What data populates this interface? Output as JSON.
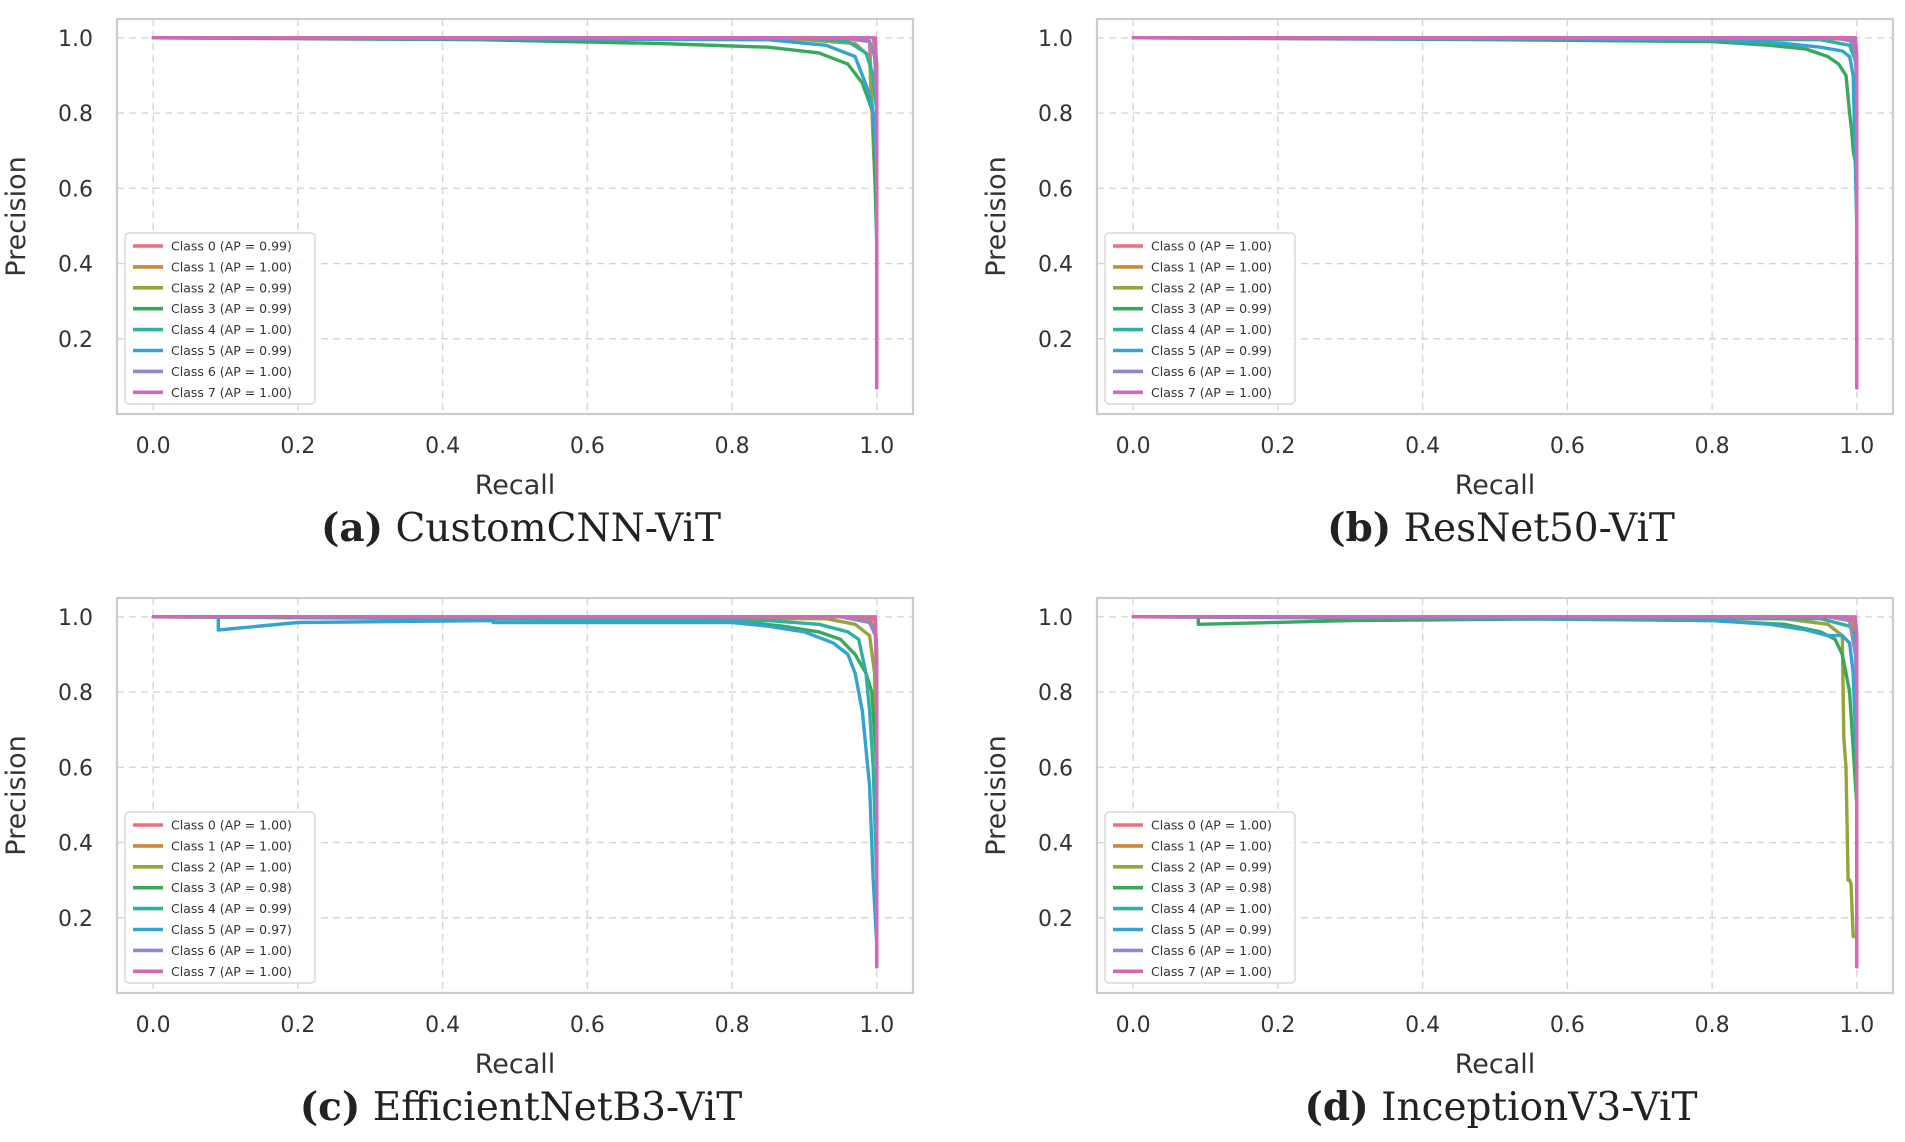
{
  "colors": [
    "#e8707f",
    "#c88a3a",
    "#9aa33a",
    "#3aa85a",
    "#2fb0a0",
    "#35a3d0",
    "#9088c8",
    "#d468b8"
  ],
  "chart_data": [
    {
      "type": "line",
      "label": "(a)",
      "caption": "CustomCNN-ViT",
      "xlabel": "Recall",
      "ylabel": "Precision",
      "xlim": [
        -0.05,
        1.05
      ],
      "ylim": [
        0.0,
        1.05
      ],
      "xticks": [
        "0.0",
        "0.2",
        "0.4",
        "0.6",
        "0.8",
        "1.0"
      ],
      "yticks": [
        "0.2",
        "0.4",
        "0.6",
        "0.8",
        "1.0"
      ],
      "grid": true,
      "legend_position": "lower-left",
      "series": [
        {
          "name": "Class 0 (AP = 0.99)",
          "x": [
            0.0,
            0.95,
            0.99,
            0.995,
            1.0,
            1.0
          ],
          "y": [
            1.0,
            1.0,
            0.99,
            0.75,
            0.73,
            0.07
          ]
        },
        {
          "name": "Class 1 (AP = 1.00)",
          "x": [
            0.0,
            0.97,
            0.995,
            1.0,
            1.0
          ],
          "y": [
            1.0,
            1.0,
            1.0,
            0.93,
            0.07
          ]
        },
        {
          "name": "Class 2 (AP = 0.99)",
          "x": [
            0.0,
            0.9,
            0.97,
            0.99,
            1.0,
            1.0
          ],
          "y": [
            1.0,
            0.995,
            0.985,
            0.95,
            0.5,
            0.07
          ]
        },
        {
          "name": "Class 3 (AP = 0.99)",
          "x": [
            0.0,
            0.45,
            0.7,
            0.85,
            0.92,
            0.96,
            0.98,
            0.995,
            1.0,
            1.0
          ],
          "y": [
            1.0,
            0.995,
            0.985,
            0.975,
            0.96,
            0.93,
            0.88,
            0.8,
            0.45,
            0.07
          ]
        },
        {
          "name": "Class 4 (AP = 1.00)",
          "x": [
            0.0,
            0.9,
            0.96,
            0.985,
            0.995,
            1.0,
            1.0
          ],
          "y": [
            1.0,
            1.0,
            0.99,
            0.96,
            0.9,
            0.8,
            0.07
          ]
        },
        {
          "name": "Class 5 (AP = 0.99)",
          "x": [
            0.0,
            0.85,
            0.93,
            0.97,
            0.99,
            0.995,
            1.0,
            1.0
          ],
          "y": [
            1.0,
            0.995,
            0.98,
            0.95,
            0.85,
            0.8,
            0.65,
            0.07
          ]
        },
        {
          "name": "Class 6 (AP = 1.00)",
          "x": [
            0.0,
            0.96,
            0.99,
            0.997,
            1.0,
            1.0
          ],
          "y": [
            1.0,
            1.0,
            0.99,
            0.95,
            0.85,
            0.07
          ]
        },
        {
          "name": "Class 7 (AP = 1.00)",
          "x": [
            0.0,
            0.98,
            0.998,
            1.0,
            1.0
          ],
          "y": [
            1.0,
            1.0,
            1.0,
            0.9,
            0.07
          ]
        }
      ]
    },
    {
      "type": "line",
      "label": "(b)",
      "caption": "ResNet50-ViT",
      "xlabel": "Recall",
      "ylabel": "Precision",
      "xlim": [
        -0.05,
        1.05
      ],
      "ylim": [
        0.0,
        1.05
      ],
      "xticks": [
        "0.0",
        "0.2",
        "0.4",
        "0.6",
        "0.8",
        "1.0"
      ],
      "yticks": [
        "0.2",
        "0.4",
        "0.6",
        "0.8",
        "1.0"
      ],
      "grid": true,
      "legend_position": "lower-left",
      "series": [
        {
          "name": "Class 0 (AP = 1.00)",
          "x": [
            0.0,
            0.98,
            0.998,
            1.0,
            1.0
          ],
          "y": [
            1.0,
            1.0,
            0.99,
            0.9,
            0.07
          ]
        },
        {
          "name": "Class 1 (AP = 1.00)",
          "x": [
            0.0,
            0.98,
            0.998,
            1.0,
            1.0
          ],
          "y": [
            1.0,
            1.0,
            1.0,
            0.95,
            0.07
          ]
        },
        {
          "name": "Class 2 (AP = 1.00)",
          "x": [
            0.0,
            0.95,
            0.99,
            0.998,
            1.0,
            1.0
          ],
          "y": [
            1.0,
            1.0,
            0.995,
            0.97,
            0.85,
            0.07
          ]
        },
        {
          "name": "Class 3 (AP = 0.99)",
          "x": [
            0.0,
            0.5,
            0.8,
            0.88,
            0.93,
            0.96,
            0.975,
            0.985,
            0.99,
            0.993,
            0.995,
            1.0
          ],
          "y": [
            1.0,
            0.995,
            0.99,
            0.98,
            0.97,
            0.95,
            0.93,
            0.9,
            0.8,
            0.75,
            0.7,
            0.65
          ]
        },
        {
          "name": "Class 4 (AP = 1.00)",
          "x": [
            0.0,
            0.95,
            0.99,
            1.0,
            1.0
          ],
          "y": [
            1.0,
            0.995,
            0.98,
            0.93,
            0.07
          ]
        },
        {
          "name": "Class 5 (AP = 0.99)",
          "x": [
            0.0,
            0.8,
            0.9,
            0.95,
            0.98,
            0.99,
            0.995,
            1.0,
            1.0
          ],
          "y": [
            1.0,
            0.995,
            0.985,
            0.975,
            0.965,
            0.95,
            0.9,
            0.5,
            0.07
          ]
        },
        {
          "name": "Class 6 (AP = 1.00)",
          "x": [
            0.0,
            0.97,
            0.995,
            1.0,
            1.0
          ],
          "y": [
            1.0,
            1.0,
            0.99,
            0.9,
            0.07
          ]
        },
        {
          "name": "Class 7 (AP = 1.00)",
          "x": [
            0.0,
            0.98,
            0.998,
            1.0,
            1.0
          ],
          "y": [
            1.0,
            1.0,
            1.0,
            0.95,
            0.07
          ]
        }
      ]
    },
    {
      "type": "line",
      "label": "(c)",
      "caption": "EfficientNetB3-ViT",
      "xlabel": "Recall",
      "ylabel": "Precision",
      "xlim": [
        -0.05,
        1.05
      ],
      "ylim": [
        0.0,
        1.05
      ],
      "xticks": [
        "0.0",
        "0.2",
        "0.4",
        "0.6",
        "0.8",
        "1.0"
      ],
      "yticks": [
        "0.2",
        "0.4",
        "0.6",
        "0.8",
        "1.0"
      ],
      "grid": true,
      "legend_position": "lower-left",
      "series": [
        {
          "name": "Class 0 (AP = 1.00)",
          "x": [
            0.0,
            0.98,
            0.998,
            1.0,
            1.0
          ],
          "y": [
            1.0,
            1.0,
            0.99,
            0.9,
            0.07
          ]
        },
        {
          "name": "Class 1 (AP = 1.00)",
          "x": [
            0.0,
            0.95,
            0.99,
            0.998,
            1.0,
            1.0
          ],
          "y": [
            1.0,
            1.0,
            0.99,
            0.97,
            0.9,
            0.07
          ]
        },
        {
          "name": "Class 2 (AP = 1.00)",
          "x": [
            0.0,
            0.93,
            0.97,
            0.99,
            0.997,
            1.0,
            1.0
          ],
          "y": [
            1.0,
            0.995,
            0.98,
            0.95,
            0.85,
            0.6,
            0.07
          ]
        },
        {
          "name": "Class 3 (AP = 0.98)",
          "x": [
            0.0,
            0.6,
            0.8,
            0.87,
            0.92,
            0.95,
            0.97,
            0.985,
            0.993,
            1.0,
            1.0
          ],
          "y": [
            1.0,
            0.995,
            0.99,
            0.975,
            0.96,
            0.94,
            0.9,
            0.85,
            0.8,
            0.6,
            0.07
          ]
        },
        {
          "name": "Class 4 (AP = 0.99)",
          "x": [
            0.0,
            0.85,
            0.92,
            0.96,
            0.975,
            0.985,
            0.99,
            0.995,
            1.0,
            1.0
          ],
          "y": [
            1.0,
            0.99,
            0.98,
            0.96,
            0.94,
            0.85,
            0.75,
            0.6,
            0.3,
            0.07
          ]
        },
        {
          "name": "Class 5 (AP = 0.97)",
          "x": [
            0.0,
            0.09,
            0.09,
            0.2,
            0.47,
            0.47,
            0.8,
            0.85,
            0.9,
            0.94,
            0.96,
            0.97,
            0.98,
            0.99,
            0.995,
            1.0,
            1.0
          ],
          "y": [
            1.0,
            1.0,
            0.965,
            0.985,
            0.99,
            0.985,
            0.985,
            0.975,
            0.96,
            0.93,
            0.9,
            0.85,
            0.75,
            0.55,
            0.3,
            0.13,
            0.07
          ]
        },
        {
          "name": "Class 6 (AP = 1.00)",
          "x": [
            0.0,
            0.95,
            0.99,
            0.998,
            1.0,
            1.0
          ],
          "y": [
            1.0,
            1.0,
            0.985,
            0.95,
            0.8,
            0.07
          ]
        },
        {
          "name": "Class 7 (AP = 1.00)",
          "x": [
            0.0,
            0.98,
            0.998,
            1.0,
            1.0
          ],
          "y": [
            1.0,
            1.0,
            1.0,
            0.85,
            0.07
          ]
        }
      ]
    },
    {
      "type": "line",
      "label": "(d)",
      "caption": "InceptionV3-ViT",
      "xlabel": "Recall",
      "ylabel": "Precision",
      "xlim": [
        -0.05,
        1.05
      ],
      "ylim": [
        0.0,
        1.05
      ],
      "xticks": [
        "0.0",
        "0.2",
        "0.4",
        "0.6",
        "0.8",
        "1.0"
      ],
      "yticks": [
        "0.2",
        "0.4",
        "0.6",
        "0.8",
        "1.0"
      ],
      "grid": true,
      "legend_position": "lower-left",
      "series": [
        {
          "name": "Class 0 (AP = 1.00)",
          "x": [
            0.0,
            0.98,
            0.998,
            1.0,
            1.0
          ],
          "y": [
            1.0,
            1.0,
            0.99,
            0.9,
            0.07
          ]
        },
        {
          "name": "Class 1 (AP = 1.00)",
          "x": [
            0.0,
            0.97,
            0.995,
            1.0,
            1.0
          ],
          "y": [
            1.0,
            1.0,
            0.99,
            0.9,
            0.07
          ]
        },
        {
          "name": "Class 2 (AP = 0.99)",
          "x": [
            0.0,
            0.9,
            0.96,
            0.98,
            0.982,
            0.985,
            0.988,
            0.99,
            0.992,
            0.995,
            1.0,
            1.0
          ],
          "y": [
            1.0,
            0.995,
            0.98,
            0.95,
            0.68,
            0.6,
            0.3,
            0.3,
            0.29,
            0.15,
            0.15,
            0.07
          ]
        },
        {
          "name": "Class 3 (AP = 0.98)",
          "x": [
            0.0,
            0.09,
            0.09,
            0.3,
            0.6,
            0.8,
            0.9,
            0.95,
            0.97,
            0.98,
            0.985,
            0.99,
            1.0,
            1.0
          ],
          "y": [
            1.0,
            1.0,
            0.98,
            0.99,
            0.995,
            0.99,
            0.98,
            0.96,
            0.94,
            0.9,
            0.85,
            0.8,
            0.5,
            0.07
          ]
        },
        {
          "name": "Class 4 (AP = 1.00)",
          "x": [
            0.0,
            0.95,
            0.99,
            0.998,
            1.0,
            1.0
          ],
          "y": [
            1.0,
            0.995,
            0.975,
            0.95,
            0.8,
            0.07
          ]
        },
        {
          "name": "Class 5 (AP = 0.99)",
          "x": [
            0.0,
            0.5,
            0.8,
            0.88,
            0.93,
            0.96,
            0.98,
            0.99,
            0.995,
            1.0,
            1.0
          ],
          "y": [
            1.0,
            0.995,
            0.99,
            0.98,
            0.965,
            0.95,
            0.95,
            0.93,
            0.85,
            0.6,
            0.07
          ]
        },
        {
          "name": "Class 6 (AP = 1.00)",
          "x": [
            0.0,
            0.96,
            0.99,
            0.998,
            1.0,
            1.0
          ],
          "y": [
            1.0,
            1.0,
            0.99,
            0.9,
            0.8,
            0.07
          ]
        },
        {
          "name": "Class 7 (AP = 1.00)",
          "x": [
            0.0,
            0.98,
            0.998,
            1.0,
            1.0
          ],
          "y": [
            1.0,
            1.0,
            1.0,
            0.95,
            0.07
          ]
        }
      ]
    }
  ]
}
